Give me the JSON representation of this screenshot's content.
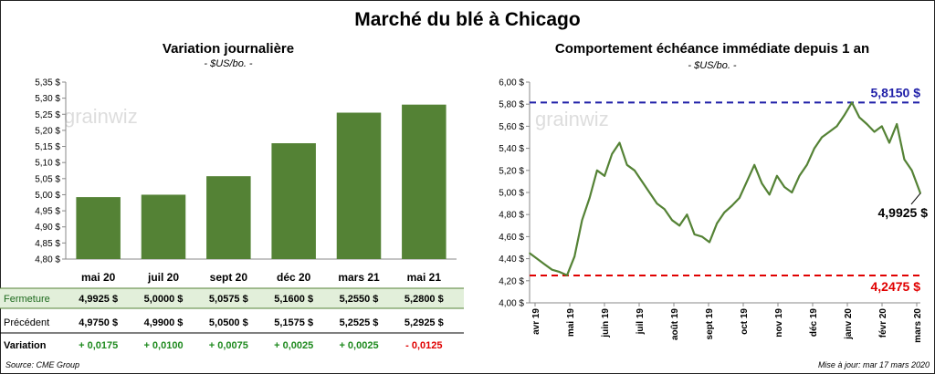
{
  "header": {
    "title": "Marché du blé à Chicago"
  },
  "colors": {
    "bar": "#548235",
    "line": "#548235",
    "max_line": "#1f1fa8",
    "min_line": "#e00000",
    "row_highlight": "#e2efda",
    "positive": "#1e8a1e",
    "negative": "#e00000"
  },
  "chart_data": [
    {
      "type": "bar",
      "title": "Variation journalière",
      "subtitle": "- $US/bo. -",
      "categories": [
        "mai 20",
        "juil 20",
        "sept 20",
        "déc 20",
        "mars 21",
        "mai 21"
      ],
      "values": [
        4.9925,
        5.0,
        5.0575,
        5.16,
        5.255,
        5.28
      ],
      "ylim": [
        4.8,
        5.35
      ],
      "y_ticks": [
        "4,80 $",
        "4,85 $",
        "4,90 $",
        "4,95 $",
        "5,00 $",
        "5,05 $",
        "5,10 $",
        "5,15 $",
        "5,20 $",
        "5,25 $",
        "5,30 $",
        "5,35 $"
      ],
      "grid": false,
      "watermark": "grainwiz"
    },
    {
      "type": "line",
      "title": "Comportement  échéance immédiate depuis 1 an",
      "subtitle": "- $US/bo. -",
      "ylim": [
        4.0,
        6.0
      ],
      "y_ticks": [
        "4,00 $",
        "4,20 $",
        "4,40 $",
        "4,60 $",
        "4,80 $",
        "5,00 $",
        "5,20 $",
        "5,40 $",
        "5,60 $",
        "5,80 $",
        "6,00 $"
      ],
      "x_ticks": [
        "avr 19",
        "mai 19",
        "juin 19",
        "juil 19",
        "août 19",
        "sept 19",
        "oct 19",
        "nov 19",
        "déc 19",
        "janv 20",
        "févr 20",
        "mars 20"
      ],
      "x": [
        "2019-03-18",
        "2019-03-25",
        "2019-04-01",
        "2019-04-08",
        "2019-04-15",
        "2019-04-22",
        "2019-04-29",
        "2019-05-06",
        "2019-05-13",
        "2019-05-20",
        "2019-05-27",
        "2019-06-03",
        "2019-06-10",
        "2019-06-17",
        "2019-06-24",
        "2019-07-01",
        "2019-07-08",
        "2019-07-15",
        "2019-07-22",
        "2019-07-29",
        "2019-08-05",
        "2019-08-12",
        "2019-08-19",
        "2019-08-26",
        "2019-09-02",
        "2019-09-09",
        "2019-09-16",
        "2019-09-23",
        "2019-09-30",
        "2019-10-07",
        "2019-10-14",
        "2019-10-21",
        "2019-10-28",
        "2019-11-04",
        "2019-11-11",
        "2019-11-18",
        "2019-11-25",
        "2019-12-02",
        "2019-12-09",
        "2019-12-16",
        "2019-12-23",
        "2019-12-30",
        "2020-01-06",
        "2020-01-13",
        "2020-01-20",
        "2020-01-27",
        "2020-02-03",
        "2020-02-10",
        "2020-02-17",
        "2020-02-24",
        "2020-03-02",
        "2020-03-09",
        "2020-03-17"
      ],
      "values": [
        4.45,
        4.4,
        4.35,
        4.3,
        4.28,
        4.25,
        4.42,
        4.75,
        4.95,
        5.2,
        5.15,
        5.35,
        5.45,
        5.25,
        5.2,
        5.1,
        5.0,
        4.9,
        4.85,
        4.75,
        4.7,
        4.8,
        4.62,
        4.6,
        4.55,
        4.72,
        4.82,
        4.88,
        4.95,
        5.1,
        5.25,
        5.08,
        4.98,
        5.15,
        5.05,
        5.0,
        5.15,
        5.25,
        5.4,
        5.5,
        5.55,
        5.6,
        5.7,
        5.815,
        5.68,
        5.62,
        5.55,
        5.6,
        5.45,
        5.62,
        5.3,
        5.2,
        4.9925
      ],
      "annotations": [
        {
          "label": "5,8150 $",
          "value": 5.815,
          "color": "#1f1fa8"
        },
        {
          "label": "4,2475 $",
          "value": 4.2475,
          "color": "#e00000"
        },
        {
          "label": "4,9925 $",
          "value": 4.9925,
          "color": "#000000"
        }
      ],
      "grid": false,
      "watermark": "grainwiz"
    }
  ],
  "table": {
    "rows": [
      {
        "label": "Fermeture",
        "highlight": true,
        "bold": false,
        "cells": [
          "4,9925  $",
          "5,0000  $",
          "5,0575  $",
          "5,1600  $",
          "5,2550  $",
          "5,2800  $"
        ]
      },
      {
        "label": "Précédent",
        "highlight": false,
        "bold": false,
        "cells": [
          "4,9750  $",
          "4,9900  $",
          "5,0500  $",
          "5,1575  $",
          "5,2525  $",
          "5,2925  $"
        ]
      },
      {
        "label": "Variation",
        "highlight": false,
        "bold": true,
        "cells": [
          "+ 0,0175",
          "+ 0,0100",
          "+ 0,0075",
          "+ 0,0025",
          "+ 0,0025",
          "- 0,0125"
        ],
        "signs": [
          "pos",
          "pos",
          "pos",
          "pos",
          "pos",
          "neg"
        ]
      }
    ]
  },
  "footer": {
    "source": "Source: CME Group",
    "updated": "Mise à jour: mar 17 mars 2020"
  }
}
